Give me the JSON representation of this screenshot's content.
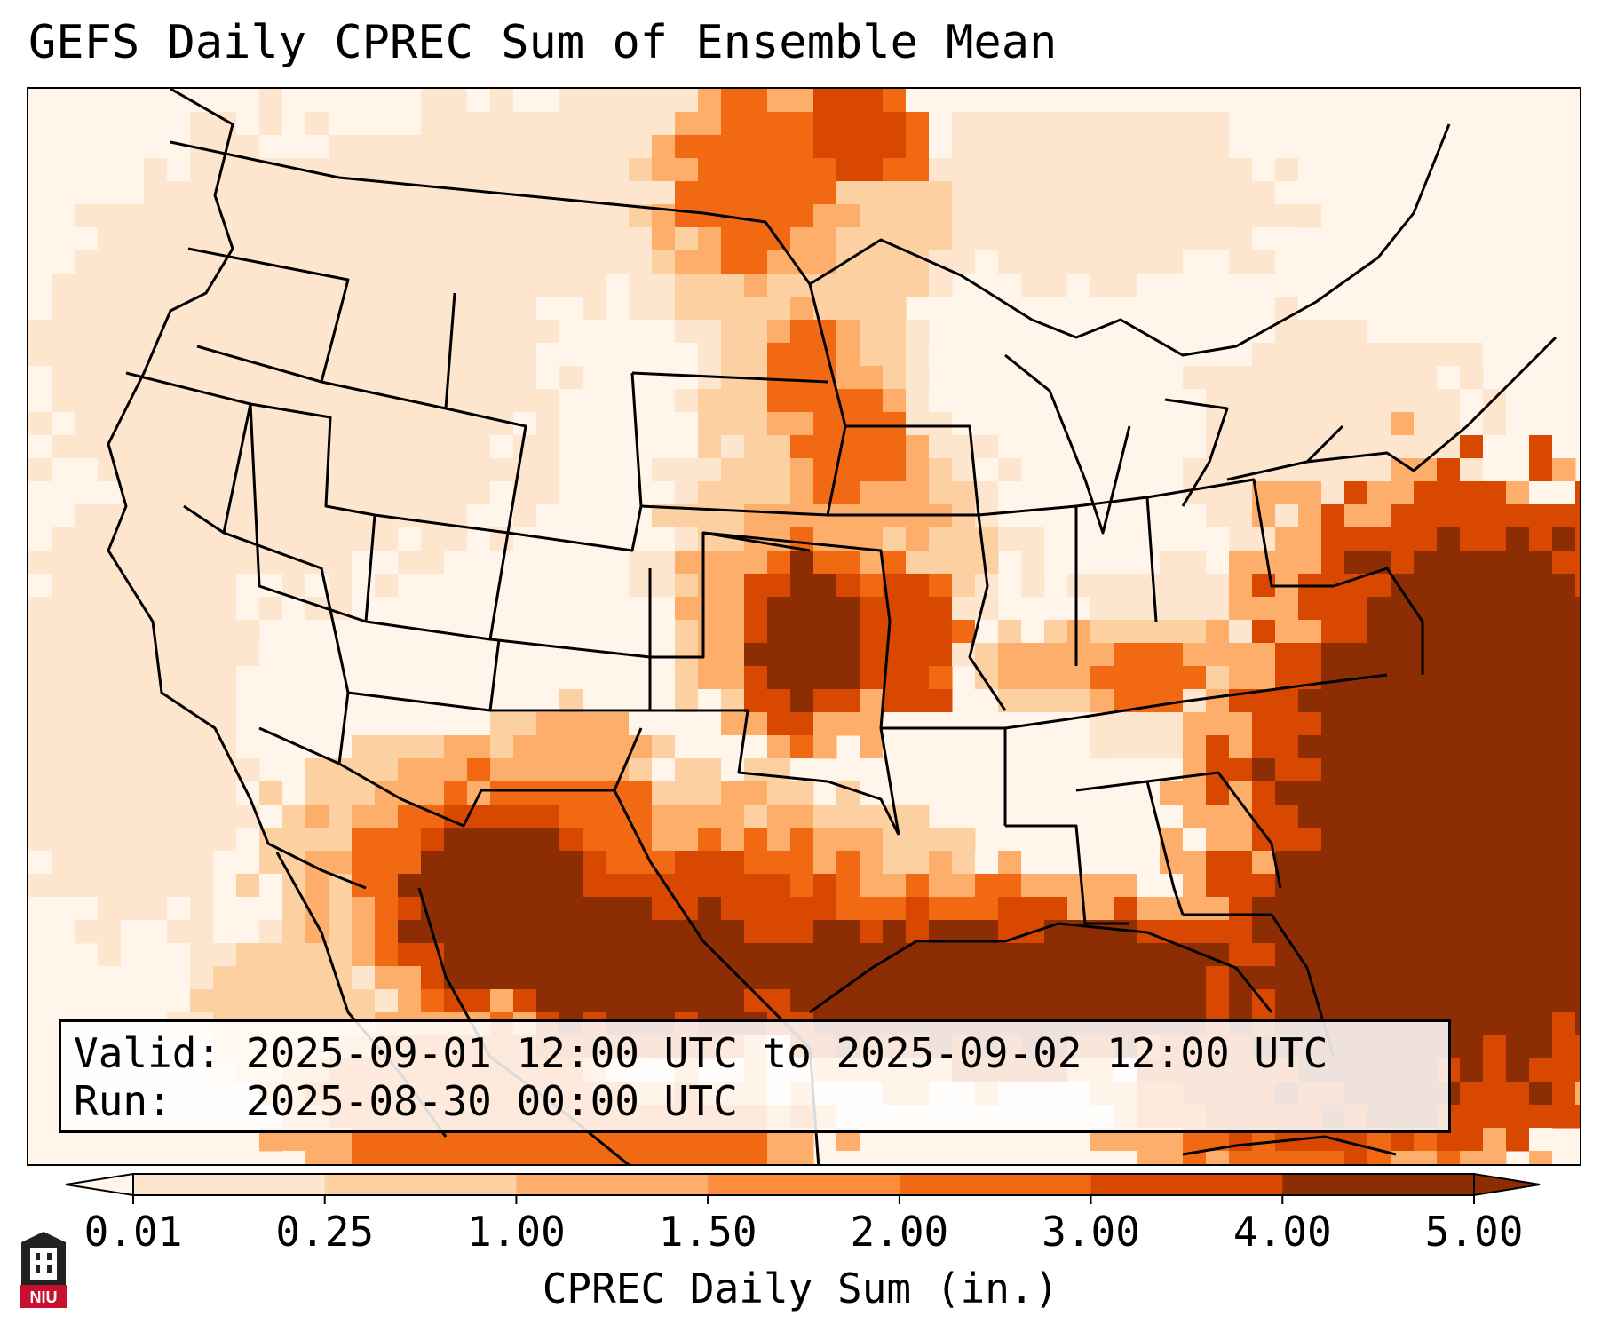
{
  "title": "GEFS Daily CPREC Sum of Ensemble Mean",
  "info": {
    "valid_label": "Valid:",
    "valid_value": "2025-09-01 12:00 UTC to 2025-09-02 12:00 UTC",
    "run_label": "Run:",
    "run_value": "2025-08-30 00:00 UTC"
  },
  "colorbar": {
    "title": "CPREC Daily Sum (in.)",
    "ticks": [
      "0.01",
      "0.25",
      "1.00",
      "1.50",
      "2.00",
      "3.00",
      "4.00",
      "5.00"
    ],
    "colors": [
      "#fff5eb",
      "#fee6ce",
      "#fdd0a2",
      "#fdae6b",
      "#fd8d3c",
      "#f16913",
      "#d94801",
      "#8c2d04"
    ],
    "extend": "both"
  },
  "logo": {
    "text": "NIU"
  },
  "palette": {
    "c0": "#ffffff",
    "c1": "#fff5eb",
    "c2": "#fee6ce",
    "c3": "#fdd0a2",
    "c4": "#fdae6b",
    "c5": "#f16913",
    "c6": "#d94801",
    "c7": "#8c2d04"
  }
}
